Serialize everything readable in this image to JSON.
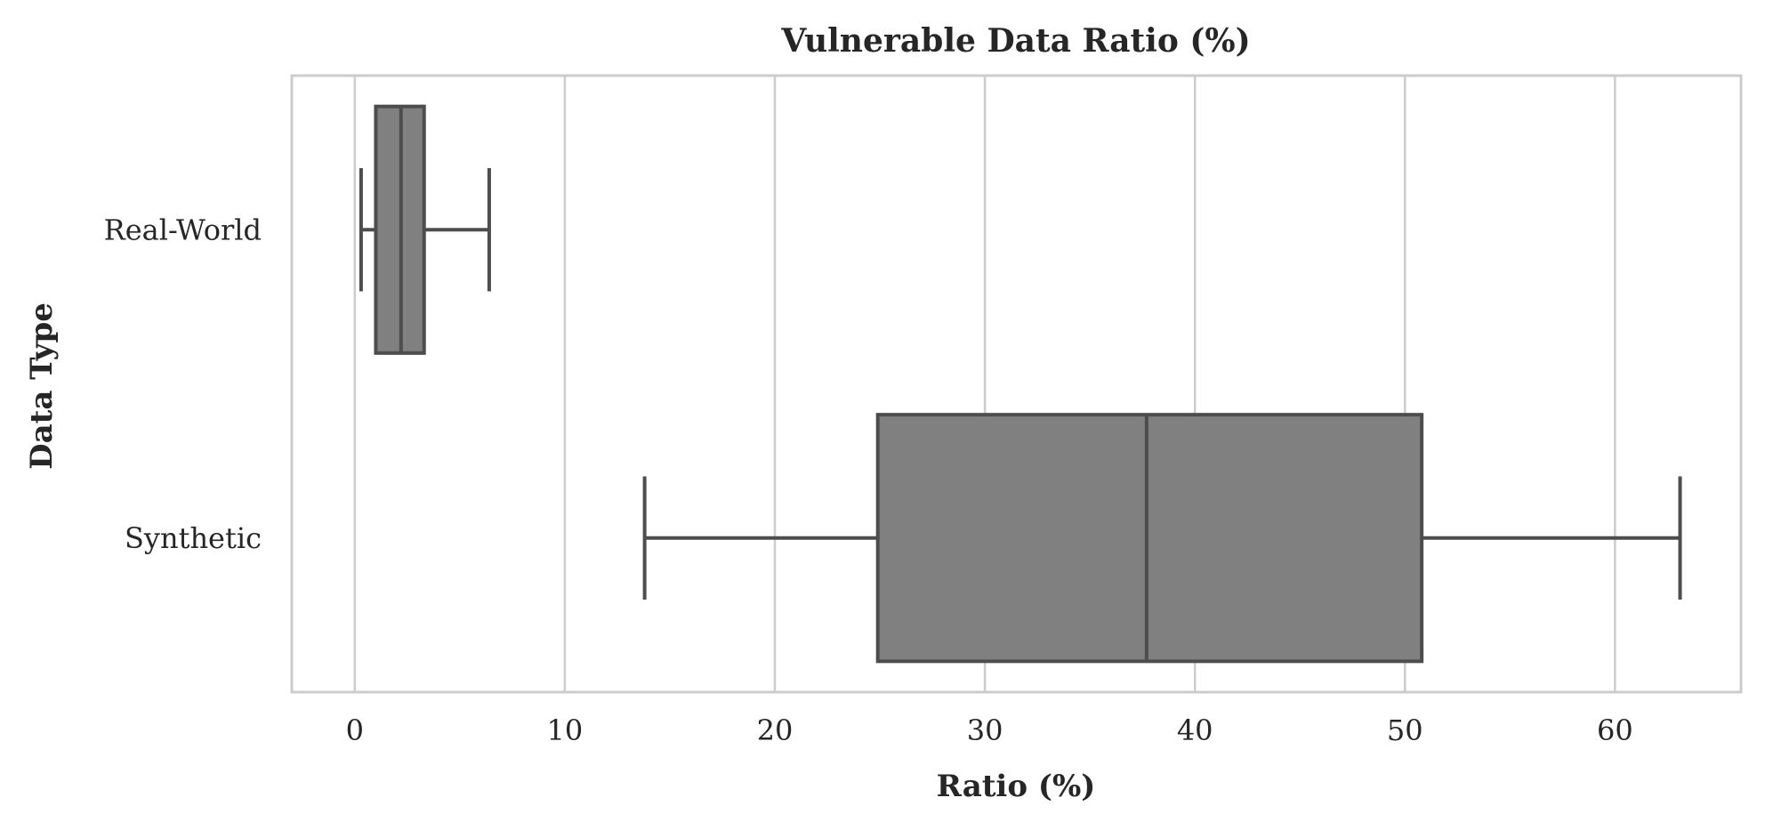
{
  "chart_data": {
    "type": "box",
    "orientation": "horizontal",
    "title": "Vulnerable Data Ratio (%)",
    "xlabel": "Ratio (%)",
    "ylabel": "Data Type",
    "xlim": [
      -3,
      66
    ],
    "xticks": [
      0,
      10,
      20,
      30,
      40,
      50,
      60
    ],
    "grid": "vertical",
    "legend": "none",
    "categories": [
      "Real-World",
      "Synthetic"
    ],
    "boxes": [
      {
        "category": "Real-World",
        "whisker_low": 0.3,
        "q1": 1.0,
        "median": 2.2,
        "q3": 3.3,
        "whisker_high": 6.4
      },
      {
        "category": "Synthetic",
        "whisker_low": 13.8,
        "q1": 24.9,
        "median": 37.7,
        "q3": 50.8,
        "whisker_high": 63.1
      }
    ],
    "colors": {
      "box_fill": "#808080",
      "box_edge": "#4d4d4d",
      "grid": "#cccccc",
      "frame": "#cccccc"
    }
  }
}
